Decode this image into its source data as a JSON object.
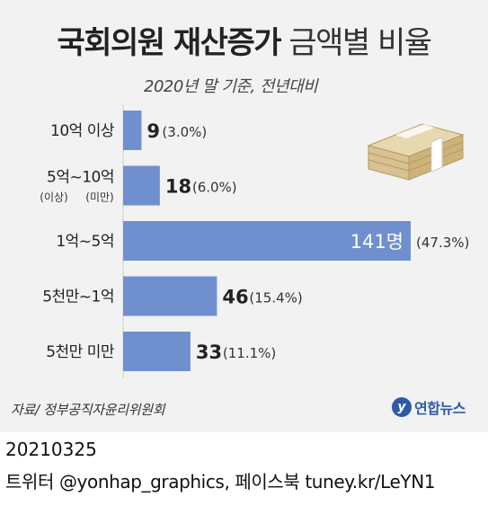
{
  "title_bold": "국회의원 재산증가",
  "title_light": "금액별 비율",
  "subtitle": "2020년 말 기준, 전년대비",
  "footer_source": "자료/ 정부공직자윤리위원회",
  "logo": {
    "mark": "y",
    "text": "연합뉴스"
  },
  "date": "20210325",
  "credit": "트위터 @yonhap_graphics, 페이스북 tuney.kr/LeYN1",
  "colors": {
    "bar": "#6f8fcf",
    "background": "#f2f2f2"
  },
  "chart_data": {
    "type": "bar",
    "orientation": "horizontal",
    "categories": [
      {
        "label": "10억 이상",
        "sub": [
          "",
          ""
        ]
      },
      {
        "label": "5억~10억",
        "sub": [
          "(이상)",
          "(미만)"
        ]
      },
      {
        "label": "1억~5억",
        "sub": [
          "",
          ""
        ]
      },
      {
        "label": "5천만~1억",
        "sub": [
          "",
          ""
        ]
      },
      {
        "label": "5천만 미만",
        "sub": [
          "",
          ""
        ]
      }
    ],
    "values": [
      9,
      18,
      141,
      46,
      33
    ],
    "value_labels": [
      "9",
      "18",
      "141명",
      "46",
      "33"
    ],
    "percent_labels": [
      "(3.0%)",
      "(6.0%)",
      "(47.3%)",
      "(15.4%)",
      "(11.1%)"
    ],
    "xlim": [
      0,
      141
    ]
  }
}
